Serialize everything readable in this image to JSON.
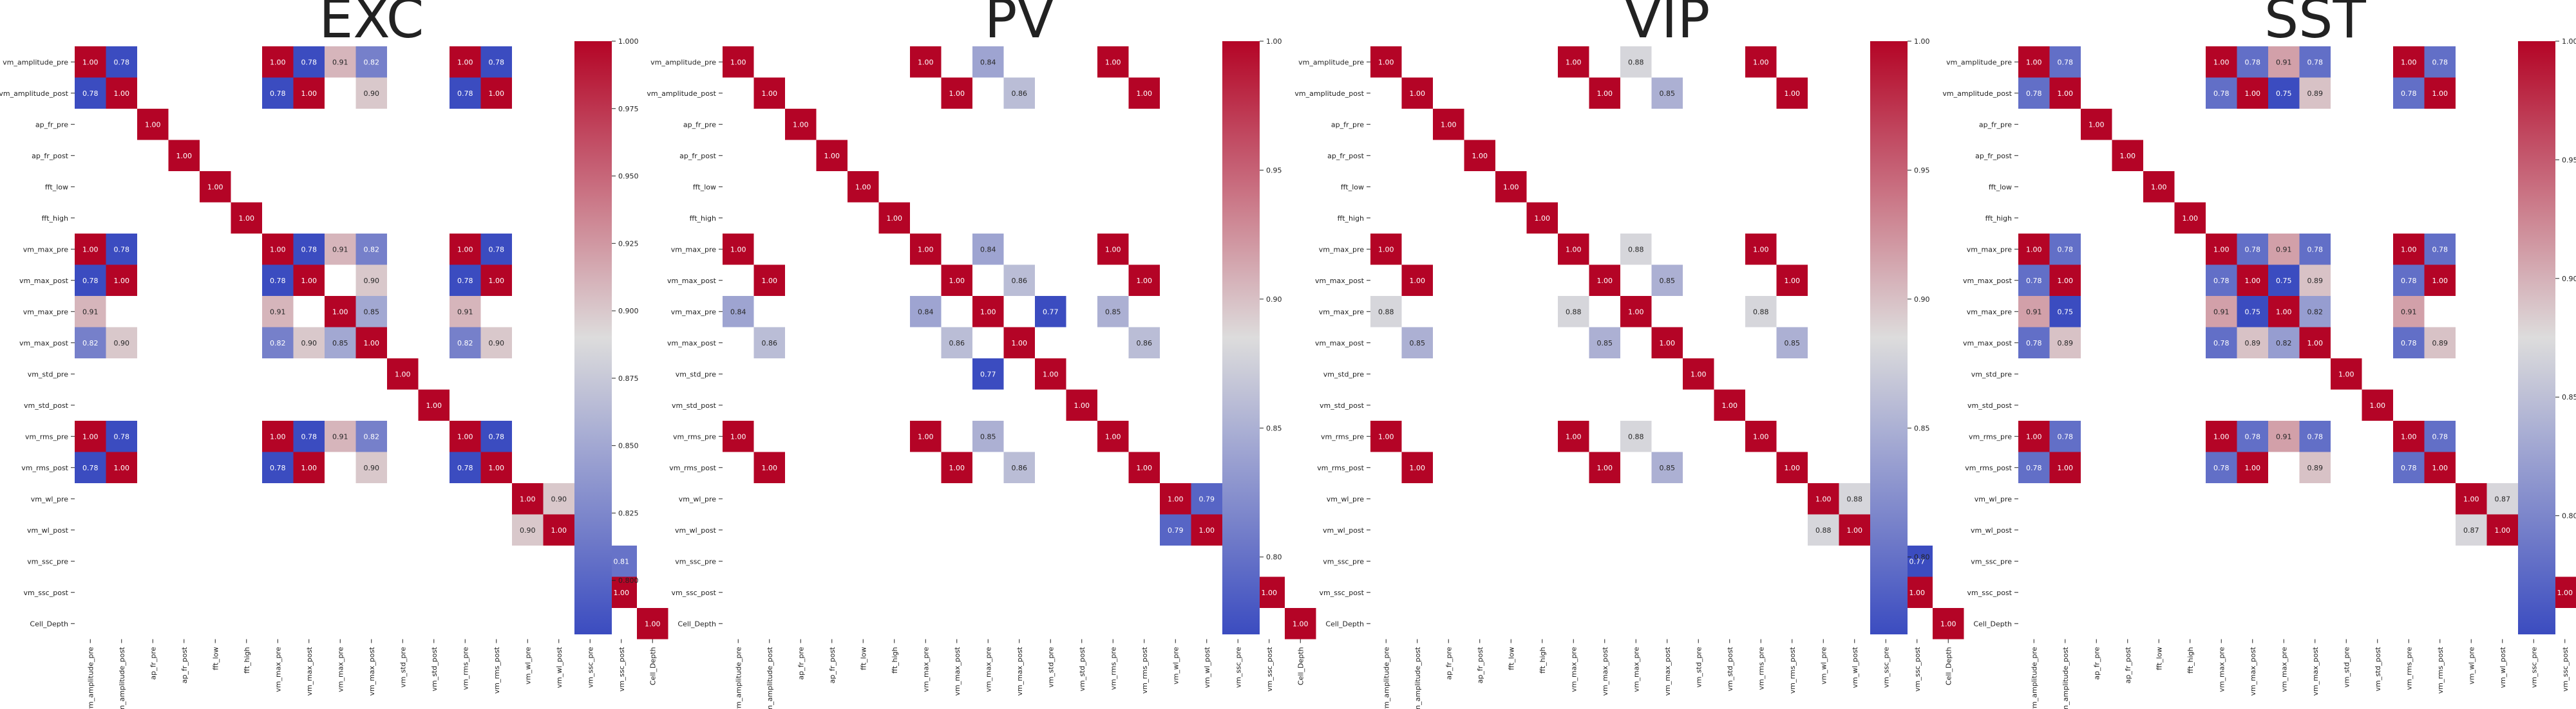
{
  "variables": [
    "vm_amplitude_pre",
    "vm_amplitude_post",
    "ap_fr_pre",
    "ap_fr_post",
    "fft_low",
    "fft_high",
    "vm_max_pre",
    "vm_max_post",
    "vm_max_pre",
    "vm_max_post",
    "vm_std_pre",
    "vm_std_post",
    "vm_rms_pre",
    "vm_rms_post",
    "vm_wl_pre",
    "vm_wl_post",
    "vm_ssc_pre",
    "vm_ssc_post",
    "Cell_Depth"
  ],
  "colormap": {
    "name": "coolwarm",
    "low": "#3b4cc0",
    "mid": "#dddcdc",
    "high": "#b40426"
  },
  "chart_data": [
    {
      "type": "heatmap",
      "title": "EXC",
      "vmin": 0.78,
      "vmax": 1.0,
      "colorbar_ticks": [
        "0.800",
        "0.825",
        "0.850",
        "0.875",
        "0.900",
        "0.925",
        "0.950",
        "0.975",
        "1.000"
      ],
      "cells": [
        [
          0,
          0,
          1.0
        ],
        [
          0,
          1,
          0.78
        ],
        [
          0,
          6,
          1.0
        ],
        [
          0,
          7,
          0.78
        ],
        [
          0,
          8,
          0.91
        ],
        [
          0,
          9,
          0.82
        ],
        [
          0,
          12,
          1.0
        ],
        [
          0,
          13,
          0.78
        ],
        [
          1,
          0,
          0.78
        ],
        [
          1,
          1,
          1.0
        ],
        [
          1,
          6,
          0.78
        ],
        [
          1,
          7,
          1.0
        ],
        [
          1,
          9,
          0.9
        ],
        [
          1,
          12,
          0.78
        ],
        [
          1,
          13,
          1.0
        ],
        [
          2,
          2,
          1.0
        ],
        [
          3,
          3,
          1.0
        ],
        [
          4,
          4,
          1.0
        ],
        [
          5,
          5,
          1.0
        ],
        [
          6,
          0,
          1.0
        ],
        [
          6,
          1,
          0.78
        ],
        [
          6,
          6,
          1.0
        ],
        [
          6,
          7,
          0.78
        ],
        [
          6,
          8,
          0.91
        ],
        [
          6,
          9,
          0.82
        ],
        [
          6,
          12,
          1.0
        ],
        [
          6,
          13,
          0.78
        ],
        [
          7,
          0,
          0.78
        ],
        [
          7,
          1,
          1.0
        ],
        [
          7,
          6,
          0.78
        ],
        [
          7,
          7,
          1.0
        ],
        [
          7,
          9,
          0.9
        ],
        [
          7,
          12,
          0.78
        ],
        [
          7,
          13,
          1.0
        ],
        [
          8,
          0,
          0.91
        ],
        [
          8,
          6,
          0.91
        ],
        [
          8,
          8,
          1.0
        ],
        [
          8,
          9,
          0.85
        ],
        [
          8,
          12,
          0.91
        ],
        [
          9,
          0,
          0.82
        ],
        [
          9,
          1,
          0.9
        ],
        [
          9,
          6,
          0.82
        ],
        [
          9,
          7,
          0.9
        ],
        [
          9,
          8,
          0.85
        ],
        [
          9,
          9,
          1.0
        ],
        [
          9,
          12,
          0.82
        ],
        [
          9,
          13,
          0.9
        ],
        [
          10,
          10,
          1.0
        ],
        [
          11,
          11,
          1.0
        ],
        [
          12,
          0,
          1.0
        ],
        [
          12,
          1,
          0.78
        ],
        [
          12,
          6,
          1.0
        ],
        [
          12,
          7,
          0.78
        ],
        [
          12,
          8,
          0.91
        ],
        [
          12,
          9,
          0.82
        ],
        [
          12,
          12,
          1.0
        ],
        [
          12,
          13,
          0.78
        ],
        [
          13,
          0,
          0.78
        ],
        [
          13,
          1,
          1.0
        ],
        [
          13,
          6,
          0.78
        ],
        [
          13,
          7,
          1.0
        ],
        [
          13,
          9,
          0.9
        ],
        [
          13,
          12,
          0.78
        ],
        [
          13,
          13,
          1.0
        ],
        [
          14,
          14,
          1.0
        ],
        [
          14,
          15,
          0.9
        ],
        [
          15,
          14,
          0.9
        ],
        [
          15,
          15,
          1.0
        ],
        [
          16,
          16,
          1.0
        ],
        [
          16,
          17,
          0.81
        ],
        [
          17,
          16,
          0.81
        ],
        [
          17,
          17,
          1.0
        ],
        [
          18,
          18,
          1.0
        ]
      ]
    },
    {
      "type": "heatmap",
      "title": "PV",
      "vmin": 0.77,
      "vmax": 1.0,
      "colorbar_ticks": [
        "0.80",
        "0.85",
        "0.90",
        "0.95",
        "1.00"
      ],
      "cells": [
        [
          0,
          0,
          1.0
        ],
        [
          0,
          6,
          1.0
        ],
        [
          0,
          8,
          0.84
        ],
        [
          0,
          12,
          1.0
        ],
        [
          1,
          1,
          1.0
        ],
        [
          1,
          7,
          1.0
        ],
        [
          1,
          9,
          0.86
        ],
        [
          1,
          13,
          1.0
        ],
        [
          2,
          2,
          1.0
        ],
        [
          3,
          3,
          1.0
        ],
        [
          4,
          4,
          1.0
        ],
        [
          5,
          5,
          1.0
        ],
        [
          6,
          0,
          1.0
        ],
        [
          6,
          6,
          1.0
        ],
        [
          6,
          8,
          0.84
        ],
        [
          6,
          12,
          1.0
        ],
        [
          7,
          1,
          1.0
        ],
        [
          7,
          7,
          1.0
        ],
        [
          7,
          9,
          0.86
        ],
        [
          7,
          13,
          1.0
        ],
        [
          8,
          0,
          0.84
        ],
        [
          8,
          6,
          0.84
        ],
        [
          8,
          8,
          1.0
        ],
        [
          8,
          10,
          0.77
        ],
        [
          8,
          12,
          0.85
        ],
        [
          9,
          1,
          0.86
        ],
        [
          9,
          7,
          0.86
        ],
        [
          9,
          9,
          1.0
        ],
        [
          9,
          13,
          0.86
        ],
        [
          10,
          8,
          0.77
        ],
        [
          10,
          10,
          1.0
        ],
        [
          11,
          11,
          1.0
        ],
        [
          12,
          0,
          1.0
        ],
        [
          12,
          6,
          1.0
        ],
        [
          12,
          8,
          0.85
        ],
        [
          12,
          12,
          1.0
        ],
        [
          13,
          1,
          1.0
        ],
        [
          13,
          7,
          1.0
        ],
        [
          13,
          9,
          0.86
        ],
        [
          13,
          13,
          1.0
        ],
        [
          14,
          14,
          1.0
        ],
        [
          14,
          15,
          0.79
        ],
        [
          15,
          14,
          0.79
        ],
        [
          15,
          15,
          1.0
        ],
        [
          16,
          16,
          1.0
        ],
        [
          17,
          17,
          1.0
        ],
        [
          18,
          18,
          1.0
        ]
      ]
    },
    {
      "type": "heatmap",
      "title": "VIP",
      "vmin": 0.77,
      "vmax": 1.0,
      "colorbar_ticks": [
        "0.80",
        "0.85",
        "0.90",
        "0.95",
        "1.00"
      ],
      "cells": [
        [
          0,
          0,
          1.0
        ],
        [
          0,
          6,
          1.0
        ],
        [
          0,
          8,
          0.88
        ],
        [
          0,
          12,
          1.0
        ],
        [
          1,
          1,
          1.0
        ],
        [
          1,
          7,
          1.0
        ],
        [
          1,
          9,
          0.85
        ],
        [
          1,
          13,
          1.0
        ],
        [
          2,
          2,
          1.0
        ],
        [
          3,
          3,
          1.0
        ],
        [
          4,
          4,
          1.0
        ],
        [
          5,
          5,
          1.0
        ],
        [
          6,
          0,
          1.0
        ],
        [
          6,
          6,
          1.0
        ],
        [
          6,
          8,
          0.88
        ],
        [
          6,
          12,
          1.0
        ],
        [
          7,
          1,
          1.0
        ],
        [
          7,
          7,
          1.0
        ],
        [
          7,
          9,
          0.85
        ],
        [
          7,
          13,
          1.0
        ],
        [
          8,
          0,
          0.88
        ],
        [
          8,
          6,
          0.88
        ],
        [
          8,
          8,
          1.0
        ],
        [
          8,
          12,
          0.88
        ],
        [
          9,
          1,
          0.85
        ],
        [
          9,
          7,
          0.85
        ],
        [
          9,
          9,
          1.0
        ],
        [
          9,
          13,
          0.85
        ],
        [
          10,
          10,
          1.0
        ],
        [
          11,
          11,
          1.0
        ],
        [
          12,
          0,
          1.0
        ],
        [
          12,
          6,
          1.0
        ],
        [
          12,
          8,
          0.88
        ],
        [
          12,
          12,
          1.0
        ],
        [
          13,
          1,
          1.0
        ],
        [
          13,
          7,
          1.0
        ],
        [
          13,
          9,
          0.85
        ],
        [
          13,
          13,
          1.0
        ],
        [
          14,
          14,
          1.0
        ],
        [
          14,
          15,
          0.88
        ],
        [
          15,
          14,
          0.88
        ],
        [
          15,
          15,
          1.0
        ],
        [
          16,
          16,
          1.0
        ],
        [
          16,
          17,
          0.77
        ],
        [
          17,
          16,
          0.77
        ],
        [
          17,
          17,
          1.0
        ],
        [
          18,
          18,
          1.0
        ]
      ]
    },
    {
      "type": "heatmap",
      "title": "SST",
      "vmin": 0.75,
      "vmax": 1.0,
      "colorbar_ticks": [
        "0.80",
        "0.85",
        "0.90",
        "0.95",
        "1.00"
      ],
      "cells": [
        [
          0,
          0,
          1.0
        ],
        [
          0,
          1,
          0.78
        ],
        [
          0,
          6,
          1.0
        ],
        [
          0,
          7,
          0.78
        ],
        [
          0,
          8,
          0.91
        ],
        [
          0,
          9,
          0.78
        ],
        [
          0,
          12,
          1.0
        ],
        [
          0,
          13,
          0.78
        ],
        [
          1,
          0,
          0.78
        ],
        [
          1,
          1,
          1.0
        ],
        [
          1,
          6,
          0.78
        ],
        [
          1,
          7,
          1.0
        ],
        [
          1,
          8,
          0.75
        ],
        [
          1,
          9,
          0.89
        ],
        [
          1,
          12,
          0.78
        ],
        [
          1,
          13,
          1.0
        ],
        [
          2,
          2,
          1.0
        ],
        [
          3,
          3,
          1.0
        ],
        [
          4,
          4,
          1.0
        ],
        [
          5,
          5,
          1.0
        ],
        [
          6,
          0,
          1.0
        ],
        [
          6,
          1,
          0.78
        ],
        [
          6,
          6,
          1.0
        ],
        [
          6,
          7,
          0.78
        ],
        [
          6,
          8,
          0.91
        ],
        [
          6,
          9,
          0.78
        ],
        [
          6,
          12,
          1.0
        ],
        [
          6,
          13,
          0.78
        ],
        [
          7,
          0,
          0.78
        ],
        [
          7,
          1,
          1.0
        ],
        [
          7,
          6,
          0.78
        ],
        [
          7,
          7,
          1.0
        ],
        [
          7,
          8,
          0.75
        ],
        [
          7,
          9,
          0.89
        ],
        [
          7,
          12,
          0.78
        ],
        [
          7,
          13,
          1.0
        ],
        [
          8,
          0,
          0.91
        ],
        [
          8,
          1,
          0.75
        ],
        [
          8,
          6,
          0.91
        ],
        [
          8,
          7,
          0.75
        ],
        [
          8,
          8,
          1.0
        ],
        [
          8,
          9,
          0.82
        ],
        [
          8,
          12,
          0.91
        ],
        [
          9,
          0,
          0.78
        ],
        [
          9,
          1,
          0.89
        ],
        [
          9,
          6,
          0.78
        ],
        [
          9,
          7,
          0.89
        ],
        [
          9,
          8,
          0.82
        ],
        [
          9,
          9,
          1.0
        ],
        [
          9,
          12,
          0.78
        ],
        [
          9,
          13,
          0.89
        ],
        [
          10,
          10,
          1.0
        ],
        [
          11,
          11,
          1.0
        ],
        [
          12,
          0,
          1.0
        ],
        [
          12,
          1,
          0.78
        ],
        [
          12,
          6,
          1.0
        ],
        [
          12,
          7,
          0.78
        ],
        [
          12,
          8,
          0.91
        ],
        [
          12,
          9,
          0.78
        ],
        [
          12,
          12,
          1.0
        ],
        [
          12,
          13,
          0.78
        ],
        [
          13,
          0,
          0.78
        ],
        [
          13,
          1,
          1.0
        ],
        [
          13,
          6,
          0.78
        ],
        [
          13,
          7,
          1.0
        ],
        [
          13,
          9,
          0.89
        ],
        [
          13,
          12,
          0.78
        ],
        [
          13,
          13,
          1.0
        ],
        [
          14,
          14,
          1.0
        ],
        [
          14,
          15,
          0.87
        ],
        [
          15,
          14,
          0.87
        ],
        [
          15,
          15,
          1.0
        ],
        [
          16,
          16,
          1.0
        ],
        [
          17,
          17,
          1.0
        ],
        [
          18,
          18,
          1.0
        ]
      ]
    }
  ]
}
